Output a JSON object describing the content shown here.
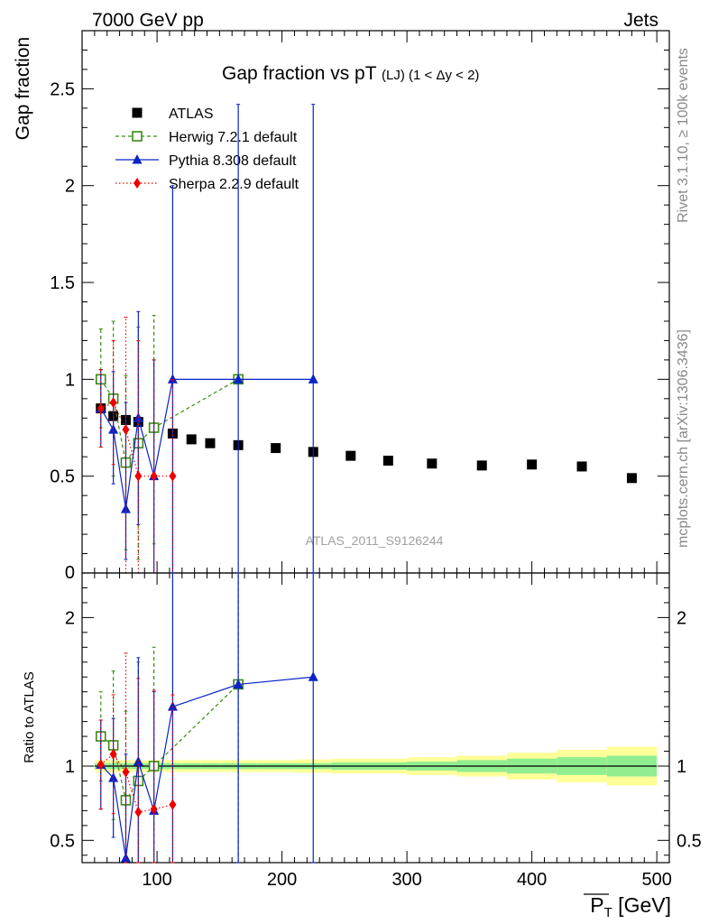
{
  "header": {
    "left": "7000 GeV pp",
    "right": "Jets"
  },
  "side_labels": {
    "rivet": "Rivet 3.1.10, ≥ 100k events",
    "mcplots": "mcplots.cern.ch [arXiv:1306.3436]"
  },
  "chart_data": [
    {
      "type": "scatter",
      "title_main": "Gap fraction vs pT",
      "title_sub": "(LJ)",
      "title_range": "(1 < Δy < 2)",
      "watermark": "ATLAS_2011_S9126244",
      "ylabel": "Gap fraction",
      "xlim": [
        40,
        510
      ],
      "ylim": [
        0,
        2.8
      ],
      "y_ticks": [
        0.5,
        1,
        1.5,
        2,
        2.5
      ],
      "y_tick_labels": [
        "0.5",
        "1",
        "1.5",
        "2",
        "2.5"
      ],
      "y_bottom_label": "0",
      "legend_position": "top-left",
      "series": [
        {
          "name": "ATLAS",
          "color": "#000000",
          "marker": "square",
          "x": [
            55,
            65,
            75,
            85,
            97.5,
            112.5,
            127.5,
            142.5,
            165,
            195,
            225,
            255,
            285,
            320,
            360,
            400,
            440,
            480
          ],
          "y": [
            0.85,
            0.81,
            0.79,
            0.78,
            0.75,
            0.72,
            0.69,
            0.67,
            0.66,
            0.645,
            0.625,
            0.605,
            0.58,
            0.565,
            0.555,
            0.56,
            0.55,
            0.49
          ]
        },
        {
          "name": "Herwig 7.2.1 default",
          "color": "#3a8a10",
          "marker": "open-square",
          "line": "dashed",
          "x": [
            55,
            65,
            75,
            85,
            97.5,
            165
          ],
          "y": [
            1.0,
            0.9,
            0.57,
            0.67,
            0.75,
            1.0
          ],
          "err_lo": [
            0.25,
            0.4,
            0.45,
            0.6,
            0.6,
            0
          ],
          "err_hi": [
            0.26,
            0.4,
            0.45,
            0.6,
            0.58,
            0
          ]
        },
        {
          "name": "Pythia 8.308 default",
          "color": "#0a22c8",
          "marker": "triangle",
          "line": "solid",
          "x": [
            55,
            65,
            75,
            85,
            97.5,
            112.5,
            165,
            225
          ],
          "y": [
            0.85,
            0.74,
            0.33,
            0.8,
            0.5,
            1.0,
            1.0,
            1.0
          ],
          "err_lo": [
            0.2,
            0.28,
            0.26,
            0.55,
            0.5,
            1.0,
            1.0,
            1.0
          ],
          "err_hi": [
            0.2,
            0.3,
            0.55,
            0.55,
            0.6,
            1.0,
            1.42,
            1.42
          ]
        },
        {
          "name": "Sherpa 2.2.9 default",
          "color": "#ee0000",
          "marker": "diamond",
          "line": "dotted",
          "x": [
            55,
            65,
            75,
            85,
            97.5,
            112.5
          ],
          "y": [
            0.85,
            0.88,
            0.74,
            0.5,
            0.5,
            0.5
          ],
          "err_lo": [
            0.2,
            0.32,
            0.74,
            0.5,
            0.5,
            0.5
          ],
          "err_hi": [
            0.2,
            0.32,
            0.58,
            0.7,
            0.6,
            0.5
          ]
        }
      ]
    },
    {
      "type": "scatter",
      "xlabel": "P_T",
      "xlabel_unit": "[GeV]",
      "ylabel": "Ratio to ATLAS",
      "xlim": [
        40,
        510
      ],
      "ylim": [
        0.35,
        2.3
      ],
      "x_ticks": [
        100,
        200,
        300,
        400,
        500
      ],
      "x_tick_labels": [
        "100",
        "200",
        "300",
        "400",
        "500"
      ],
      "y_ticks": [
        0.5,
        1,
        2
      ],
      "y_tick_labels": [
        "0.5",
        "1",
        "2"
      ],
      "bands": {
        "edges": [
          50,
          60,
          70,
          80,
          90,
          105,
          120,
          135,
          150,
          180,
          210,
          240,
          270,
          300,
          340,
          380,
          420,
          460,
          500
        ],
        "stat_half": [
          0.02,
          0.02,
          0.02,
          0.02,
          0.02,
          0.02,
          0.02,
          0.02,
          0.02,
          0.02,
          0.02,
          0.025,
          0.025,
          0.03,
          0.04,
          0.05,
          0.06,
          0.07
        ],
        "total_half": [
          0.04,
          0.04,
          0.04,
          0.04,
          0.04,
          0.04,
          0.04,
          0.04,
          0.04,
          0.04,
          0.045,
          0.05,
          0.05,
          0.06,
          0.07,
          0.09,
          0.11,
          0.13
        ],
        "stat_color": "#90ee90",
        "total_color": "#ffff99"
      },
      "series": [
        {
          "name": "Herwig 7.2.1 default",
          "color": "#3a8a10",
          "marker": "open-square",
          "line": "dashed",
          "x": [
            55,
            65,
            75,
            85,
            97.5,
            165
          ],
          "y": [
            1.2,
            1.14,
            0.77,
            0.9,
            1.0,
            1.55
          ],
          "err_lo": [
            0.3,
            0.5,
            0.4,
            0.6,
            0.8,
            2
          ],
          "err_hi": [
            0.3,
            0.5,
            0.6,
            0.8,
            0.8,
            2
          ]
        },
        {
          "name": "Pythia 8.308 default",
          "color": "#0a22c8",
          "marker": "triangle",
          "line": "solid",
          "x": [
            55,
            65,
            75,
            85,
            97.5,
            112.5,
            165,
            225
          ],
          "y": [
            1.01,
            0.92,
            0.38,
            1.03,
            0.7,
            1.4,
            1.55,
            1.6
          ],
          "err_lo": [
            0.3,
            0.4,
            0.3,
            0.7,
            0.7,
            2,
            2,
            2
          ],
          "err_hi": [
            0.3,
            0.4,
            0.7,
            0.7,
            0.8,
            2,
            2,
            2
          ]
        },
        {
          "name": "Sherpa 2.2.9 default",
          "color": "#ee0000",
          "marker": "diamond",
          "line": "dotted",
          "x": [
            55,
            65,
            75,
            85,
            97.5,
            112.5
          ],
          "y": [
            1.01,
            1.08,
            0.96,
            0.69,
            0.71,
            0.74
          ],
          "err_lo": [
            0.3,
            0.4,
            0.96,
            0.69,
            0.71,
            0.74
          ],
          "err_hi": [
            0.3,
            0.4,
            0.8,
            0.9,
            0.8,
            0.74
          ]
        }
      ]
    }
  ]
}
